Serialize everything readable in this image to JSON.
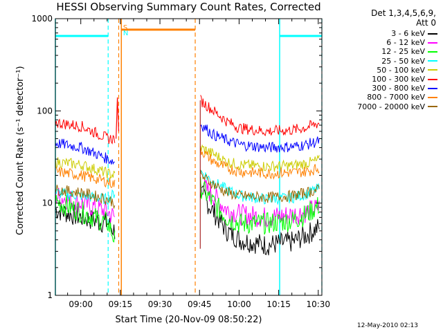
{
  "chart_data": {
    "type": "line",
    "title": "HESSI Observing Summary Count Rates, Corrected",
    "xlabel": "Start Time (20-Nov-09 08:50:22)",
    "ylabel": "Corrected Count Rate (s⁻¹ detector⁻¹)",
    "ylog": true,
    "ylim": [
      1,
      1000
    ],
    "xlim_minutes": [
      0,
      101
    ],
    "x_tick_labels": [
      "09:00",
      "09:15",
      "09:30",
      "09:45",
      "10:00",
      "10:15",
      "10:30"
    ],
    "x_tick_minutes": [
      9.63,
      24.63,
      39.63,
      54.63,
      69.63,
      84.63,
      99.63
    ],
    "y_tick_labels": [
      "1",
      "10",
      "100",
      "1000"
    ],
    "y_tick_values": [
      1,
      10,
      100,
      1000
    ],
    "legend_header": [
      "Det 1,3,4,5,6,9,",
      "Att 0"
    ],
    "series": [
      {
        "name": "3 - 6 keV",
        "color": "#000000",
        "pre": [
          [
            0,
            8.5
          ],
          [
            10,
            7
          ],
          [
            20,
            6
          ],
          [
            22.5,
            5
          ]
        ],
        "post": [
          [
            55,
            13
          ],
          [
            60,
            8
          ],
          [
            65,
            5
          ],
          [
            70,
            4
          ],
          [
            80,
            3.5
          ],
          [
            90,
            3.8
          ],
          [
            95,
            4.5
          ],
          [
            100,
            5.5
          ]
        ]
      },
      {
        "name": "6 - 12 keV",
        "color": "#ff00ff",
        "pre": [
          [
            0,
            12
          ],
          [
            10,
            10
          ],
          [
            20,
            8
          ],
          [
            22.5,
            7
          ]
        ],
        "post": [
          [
            55,
            16
          ],
          [
            60,
            12
          ],
          [
            65,
            8.5
          ],
          [
            70,
            7.5
          ],
          [
            80,
            7
          ],
          [
            90,
            7.5
          ],
          [
            95,
            8
          ],
          [
            100,
            9
          ]
        ]
      },
      {
        "name": "12 - 25 keV",
        "color": "#00ff00",
        "pre": [
          [
            0,
            10.5
          ],
          [
            10,
            8
          ],
          [
            20,
            6
          ],
          [
            22.5,
            4
          ]
        ],
        "post": [
          [
            55,
            15
          ],
          [
            60,
            10
          ],
          [
            65,
            7
          ],
          [
            70,
            6
          ],
          [
            80,
            6
          ],
          [
            90,
            6.5
          ],
          [
            95,
            7.5
          ],
          [
            100,
            9.5
          ]
        ]
      },
      {
        "name": "25 - 50 keV",
        "color": "#00ffff",
        "pre": [
          [
            0,
            13
          ],
          [
            10,
            12
          ],
          [
            20,
            11
          ],
          [
            22.5,
            13
          ]
        ],
        "post": [
          [
            55,
            22
          ],
          [
            60,
            17
          ],
          [
            65,
            14
          ],
          [
            70,
            12
          ],
          [
            80,
            11
          ],
          [
            90,
            11.5
          ],
          [
            95,
            12.5
          ],
          [
            100,
            14.5
          ]
        ]
      },
      {
        "name": "50 - 100 keV",
        "color": "#cccc00",
        "pre": [
          [
            0,
            28
          ],
          [
            10,
            26
          ],
          [
            20,
            21
          ],
          [
            22.5,
            20
          ]
        ],
        "post": [
          [
            55,
            40
          ],
          [
            60,
            34
          ],
          [
            65,
            28
          ],
          [
            70,
            26
          ],
          [
            80,
            25
          ],
          [
            90,
            25.5
          ],
          [
            95,
            27
          ],
          [
            100,
            29
          ]
        ]
      },
      {
        "name": "100 - 300 keV",
        "color": "#ff0000",
        "pre": [
          [
            0,
            75
          ],
          [
            10,
            68
          ],
          [
            20,
            50
          ],
          [
            22.5,
            50
          ]
        ],
        "post": [
          [
            55,
            130
          ],
          [
            60,
            100
          ],
          [
            65,
            77
          ],
          [
            70,
            65
          ],
          [
            80,
            60
          ],
          [
            90,
            62
          ],
          [
            95,
            66
          ],
          [
            100,
            74
          ]
        ]
      },
      {
        "name": "300 - 800 keV",
        "color": "#0000ff",
        "pre": [
          [
            0,
            45
          ],
          [
            10,
            40
          ],
          [
            20,
            30
          ],
          [
            22.5,
            28
          ]
        ],
        "post": [
          [
            55,
            72
          ],
          [
            60,
            55
          ],
          [
            65,
            48
          ],
          [
            70,
            43
          ],
          [
            80,
            40
          ],
          [
            90,
            41
          ],
          [
            95,
            43
          ],
          [
            100,
            47
          ]
        ]
      },
      {
        "name": "800 - 7000 keV",
        "color": "#ff8000",
        "pre": [
          [
            0,
            22
          ],
          [
            10,
            20
          ],
          [
            20,
            17
          ],
          [
            22.5,
            16
          ]
        ],
        "post": [
          [
            55,
            38
          ],
          [
            60,
            28
          ],
          [
            65,
            24
          ],
          [
            70,
            22
          ],
          [
            80,
            21
          ],
          [
            90,
            21.5
          ],
          [
            95,
            22
          ],
          [
            100,
            24
          ]
        ]
      },
      {
        "name": "7000 - 20000 keV",
        "color": "#996600",
        "pre": [
          [
            0,
            14
          ],
          [
            10,
            13
          ],
          [
            20,
            11
          ],
          [
            22.5,
            10
          ]
        ],
        "post": [
          [
            55,
            20
          ],
          [
            60,
            16
          ],
          [
            65,
            13
          ],
          [
            70,
            12
          ],
          [
            80,
            11.5
          ],
          [
            90,
            12
          ],
          [
            95,
            13
          ],
          [
            100,
            14
          ]
        ]
      }
    ],
    "flare_spike": {
      "x": [
        23,
        23.5,
        24
      ],
      "y": [
        50,
        140,
        60
      ]
    },
    "night_bar_level": 650,
    "night_intervals": [
      [
        0,
        20
      ],
      [
        85,
        101
      ]
    ],
    "saa_bar_level": 760,
    "saa_interval": [
      25,
      53
    ],
    "solid_cyan_lines": [
      0,
      85
    ],
    "dashed_cyan_lines": [
      20,
      101
    ],
    "orange_solid_lines": [
      25
    ],
    "orange_dashed_lines": [
      24,
      53
    ],
    "annotations": [
      {
        "text": "S",
        "color": "#ff8000",
        "x": 22
      },
      {
        "text": "N",
        "color": "#00ffff",
        "x": 22
      }
    ]
  },
  "footer": {
    "timestamp": "12-May-2010 02:13"
  }
}
